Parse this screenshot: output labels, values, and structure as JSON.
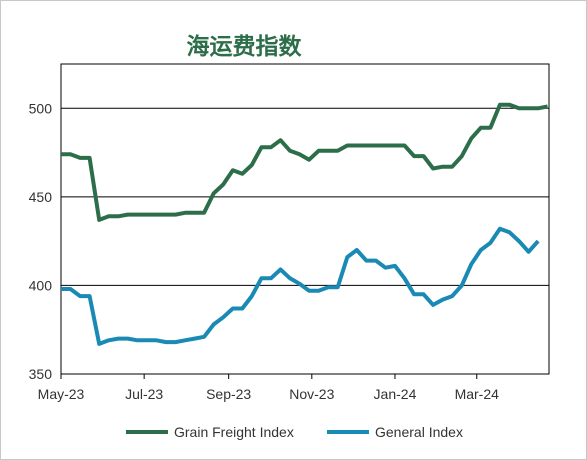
{
  "chart_data": {
    "type": "line",
    "title": "海运费指数",
    "xlabel": "",
    "ylabel": "",
    "ylim": [
      350,
      525
    ],
    "yticks": [
      350,
      400,
      450,
      500
    ],
    "grid": "horizontal",
    "legend_position": "bottom",
    "x_start": "2023-05-01",
    "x_end": "2024-04-23",
    "xticks": [
      {
        "label": "May-23",
        "date": "2023-05-01"
      },
      {
        "label": "Jul-23",
        "date": "2023-07-01"
      },
      {
        "label": "Sep-23",
        "date": "2023-09-01"
      },
      {
        "label": "Nov-23",
        "date": "2023-11-01"
      },
      {
        "label": "Jan-24",
        "date": "2024-01-01"
      },
      {
        "label": "Mar-24",
        "date": "2024-03-01"
      }
    ],
    "series": [
      {
        "name": "Grain Freight Index",
        "color": "#2d6e4a",
        "points": [
          [
            "2023-05-01",
            474
          ],
          [
            "2023-05-08",
            474
          ],
          [
            "2023-05-15",
            472
          ],
          [
            "2023-05-22",
            472
          ],
          [
            "2023-05-29",
            437
          ],
          [
            "2023-06-05",
            439
          ],
          [
            "2023-06-12",
            439
          ],
          [
            "2023-06-19",
            440
          ],
          [
            "2023-06-26",
            440
          ],
          [
            "2023-07-03",
            440
          ],
          [
            "2023-07-10",
            440
          ],
          [
            "2023-07-17",
            440
          ],
          [
            "2023-07-24",
            440
          ],
          [
            "2023-07-31",
            441
          ],
          [
            "2023-08-07",
            441
          ],
          [
            "2023-08-14",
            441
          ],
          [
            "2023-08-21",
            452
          ],
          [
            "2023-08-28",
            457
          ],
          [
            "2023-09-04",
            465
          ],
          [
            "2023-09-11",
            463
          ],
          [
            "2023-09-18",
            468
          ],
          [
            "2023-09-25",
            478
          ],
          [
            "2023-10-02",
            478
          ],
          [
            "2023-10-09",
            482
          ],
          [
            "2023-10-16",
            476
          ],
          [
            "2023-10-23",
            474
          ],
          [
            "2023-10-30",
            471
          ],
          [
            "2023-11-06",
            476
          ],
          [
            "2023-11-13",
            476
          ],
          [
            "2023-11-20",
            476
          ],
          [
            "2023-11-27",
            479
          ],
          [
            "2023-12-04",
            479
          ],
          [
            "2023-12-11",
            479
          ],
          [
            "2023-12-18",
            479
          ],
          [
            "2023-12-25",
            479
          ],
          [
            "2024-01-01",
            479
          ],
          [
            "2024-01-08",
            479
          ],
          [
            "2024-01-15",
            473
          ],
          [
            "2024-01-22",
            473
          ],
          [
            "2024-01-29",
            466
          ],
          [
            "2024-02-05",
            467
          ],
          [
            "2024-02-12",
            467
          ],
          [
            "2024-02-19",
            473
          ],
          [
            "2024-02-26",
            483
          ],
          [
            "2024-03-04",
            489
          ],
          [
            "2024-03-11",
            489
          ],
          [
            "2024-03-18",
            502
          ],
          [
            "2024-03-25",
            502
          ],
          [
            "2024-04-01",
            500
          ],
          [
            "2024-04-08",
            500
          ],
          [
            "2024-04-15",
            500
          ],
          [
            "2024-04-22",
            501
          ]
        ]
      },
      {
        "name": "General Index",
        "color": "#1a8ab4",
        "points": [
          [
            "2023-05-01",
            398
          ],
          [
            "2023-05-08",
            398
          ],
          [
            "2023-05-15",
            394
          ],
          [
            "2023-05-22",
            394
          ],
          [
            "2023-05-29",
            367
          ],
          [
            "2023-06-05",
            369
          ],
          [
            "2023-06-12",
            370
          ],
          [
            "2023-06-19",
            370
          ],
          [
            "2023-06-26",
            369
          ],
          [
            "2023-07-03",
            369
          ],
          [
            "2023-07-10",
            369
          ],
          [
            "2023-07-17",
            368
          ],
          [
            "2023-07-24",
            368
          ],
          [
            "2023-07-31",
            369
          ],
          [
            "2023-08-07",
            370
          ],
          [
            "2023-08-14",
            371
          ],
          [
            "2023-08-21",
            378
          ],
          [
            "2023-08-28",
            382
          ],
          [
            "2023-09-04",
            387
          ],
          [
            "2023-09-11",
            387
          ],
          [
            "2023-09-18",
            394
          ],
          [
            "2023-09-25",
            404
          ],
          [
            "2023-10-02",
            404
          ],
          [
            "2023-10-09",
            409
          ],
          [
            "2023-10-16",
            404
          ],
          [
            "2023-10-23",
            401
          ],
          [
            "2023-10-30",
            397
          ],
          [
            "2023-11-06",
            397
          ],
          [
            "2023-11-13",
            399
          ],
          [
            "2023-11-20",
            399
          ],
          [
            "2023-11-27",
            416
          ],
          [
            "2023-12-04",
            420
          ],
          [
            "2023-12-11",
            414
          ],
          [
            "2023-12-18",
            414
          ],
          [
            "2023-12-25",
            410
          ],
          [
            "2024-01-01",
            411
          ],
          [
            "2024-01-08",
            404
          ],
          [
            "2024-01-15",
            395
          ],
          [
            "2024-01-22",
            395
          ],
          [
            "2024-01-29",
            389
          ],
          [
            "2024-02-05",
            392
          ],
          [
            "2024-02-12",
            394
          ],
          [
            "2024-02-19",
            400
          ],
          [
            "2024-02-26",
            412
          ],
          [
            "2024-03-04",
            420
          ],
          [
            "2024-03-11",
            424
          ],
          [
            "2024-03-18",
            432
          ],
          [
            "2024-03-25",
            430
          ],
          [
            "2024-04-01",
            425
          ],
          [
            "2024-04-08",
            419
          ],
          [
            "2024-04-15",
            425
          ]
        ]
      }
    ]
  }
}
